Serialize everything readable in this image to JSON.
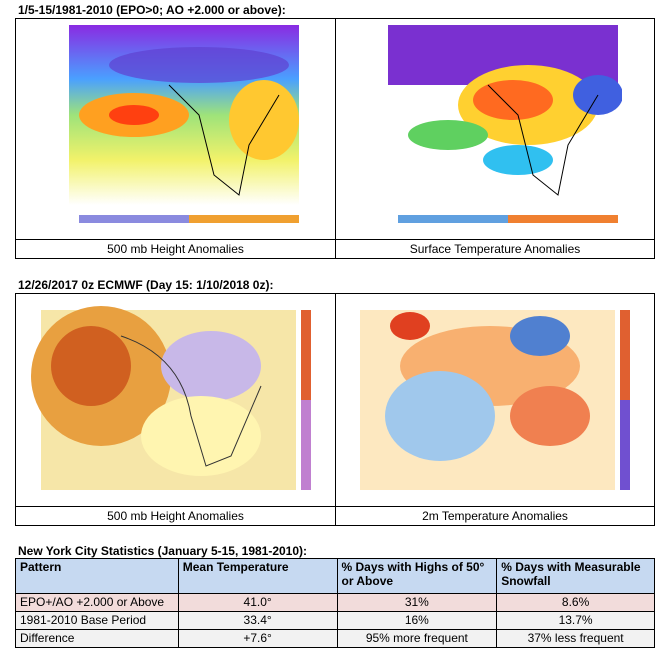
{
  "sections": [
    {
      "title": "1/5-15/1981-2010 (EPO>0; AO +2.000 or above):",
      "captions": [
        "500 mb Height Anomalies",
        "Surface Temperature Anomalies"
      ]
    },
    {
      "title": "12/26/2017 0z ECMWF (Day 15: 1/10/2018 0z):",
      "captions": [
        "500 mb Height Anomalies",
        "2m Temperature Anomalies"
      ]
    }
  ],
  "table": {
    "title": "New York City Statistics (January 5-15, 1981-2010):",
    "header": [
      "Pattern",
      "Mean Temperature",
      "% Days with Highs of 50° or Above",
      "% Days with Measurable Snowfall"
    ],
    "rows": [
      [
        "EPO+/AO +2.000 or Above",
        "41.0°",
        "31%",
        "8.6%"
      ],
      [
        "1981-2010 Base Period",
        "33.4°",
        "16%",
        "13.7%"
      ],
      [
        "Difference",
        "+7.6°",
        "95% more frequent",
        "37% less frequent"
      ]
    ]
  }
}
